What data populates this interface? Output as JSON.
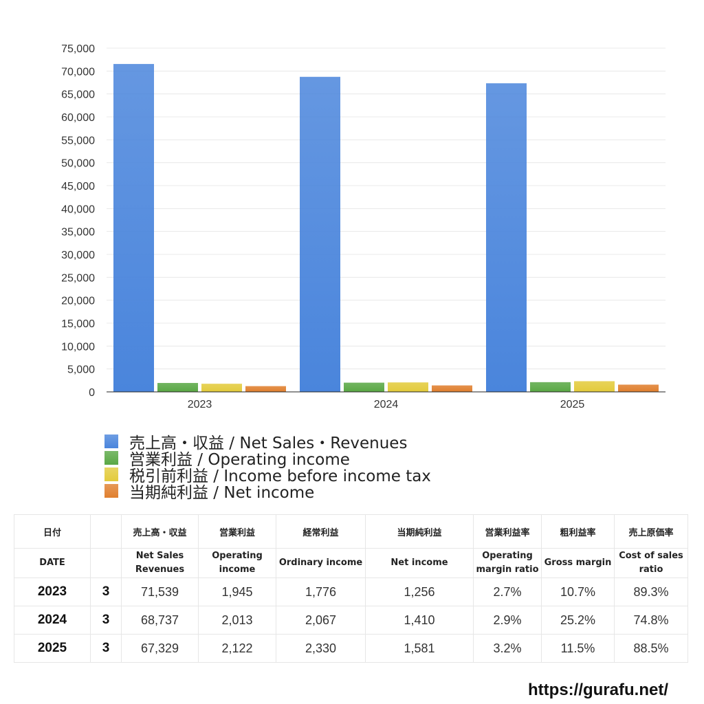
{
  "chart_data": {
    "type": "bar",
    "categories": [
      "2023",
      "2024",
      "2025"
    ],
    "series": [
      {
        "name": "売上高・収益 / Net Sales・Revenues",
        "values": [
          71539,
          68737,
          67329
        ],
        "color": "#4a85dc"
      },
      {
        "name": "営業利益 / Operating income",
        "values": [
          1945,
          2013,
          2122
        ],
        "color": "#5aa845"
      },
      {
        "name": "税引前利益 / Income before income tax",
        "values": [
          1776,
          2067,
          2330
        ],
        "color": "#e3cb3c"
      },
      {
        "name": "当期純利益 / Net income",
        "values": [
          1256,
          1410,
          1581
        ],
        "color": "#e07f2e"
      }
    ],
    "ylim": [
      0,
      75000
    ],
    "y_ticks": [
      "0",
      "5,000",
      "10,000",
      "15,000",
      "20,000",
      "25,000",
      "30,000",
      "35,000",
      "40,000",
      "45,000",
      "50,000",
      "55,000",
      "60,000",
      "65,000",
      "70,000",
      "75,000"
    ],
    "y_step": 5000,
    "grid": true,
    "legend_position": "bottom"
  },
  "table": {
    "headers_ja": [
      "日付",
      "",
      "売上高・収益",
      "営業利益",
      "経常利益",
      "当期純利益",
      "営業利益率",
      "粗利益率",
      "売上原価率"
    ],
    "headers_en": [
      [
        "DATE"
      ],
      [
        ""
      ],
      [
        "Net Sales",
        "Revenues"
      ],
      [
        "Operating",
        "income"
      ],
      [
        "Ordinary income"
      ],
      [
        "Net income"
      ],
      [
        "Operating",
        "margin ratio"
      ],
      [
        "Gross margin"
      ],
      [
        "Cost of sales",
        "ratio"
      ]
    ],
    "rows": [
      [
        "2023",
        "3",
        "71,539",
        "1,945",
        "1,776",
        "1,256",
        "2.7%",
        "10.7%",
        "89.3%"
      ],
      [
        "2024",
        "3",
        "68,737",
        "2,013",
        "2,067",
        "1,410",
        "2.9%",
        "25.2%",
        "74.8%"
      ],
      [
        "2025",
        "3",
        "67,329",
        "2,122",
        "2,330",
        "1,581",
        "3.2%",
        "11.5%",
        "88.5%"
      ]
    ]
  },
  "footer": {
    "url": "https://gurafu.net/"
  }
}
